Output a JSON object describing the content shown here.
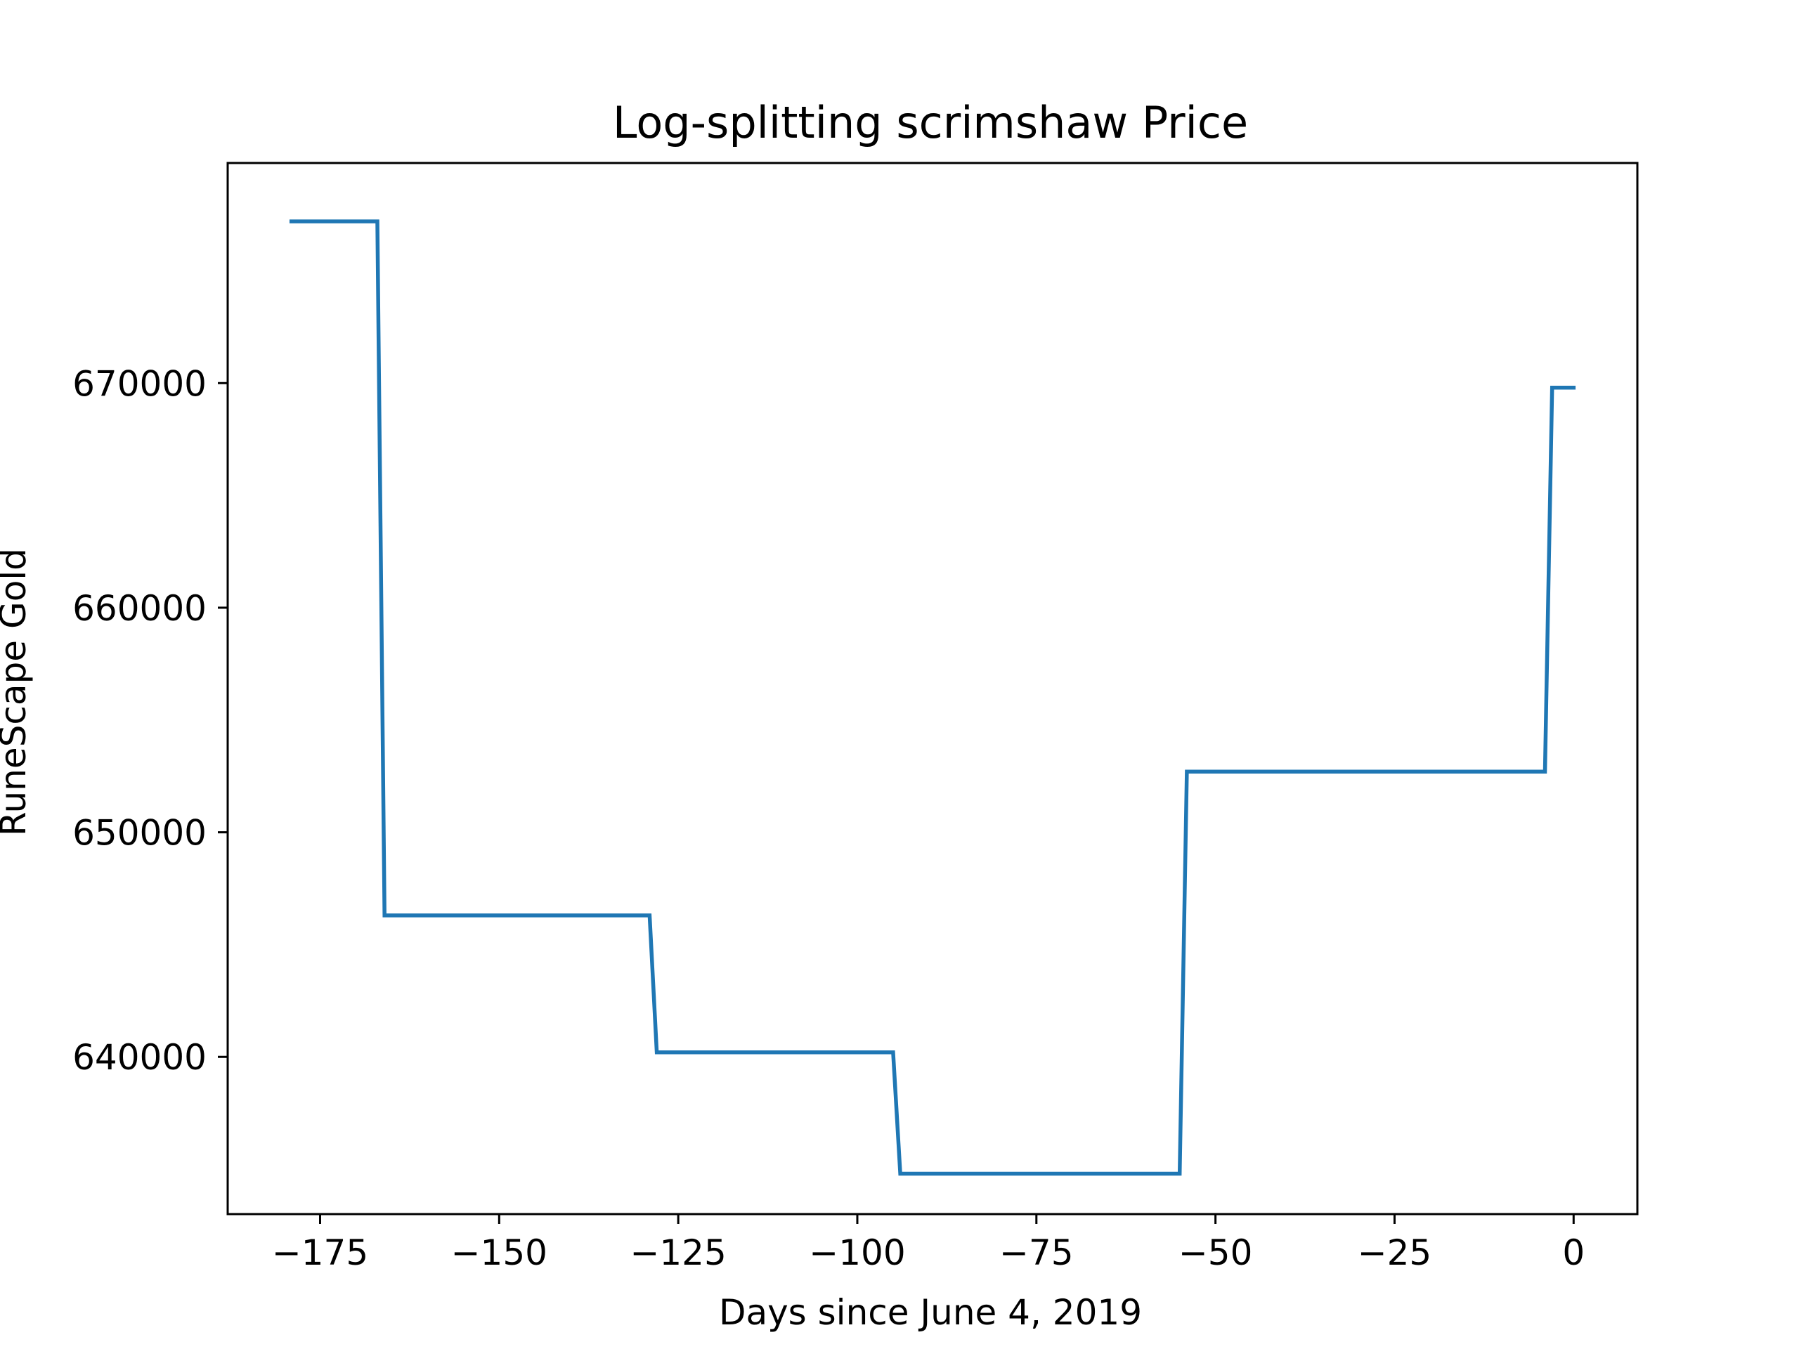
{
  "chart_data": {
    "type": "line",
    "title": "Log-splitting scrimshaw Price",
    "xlabel": "Days since June 4, 2019",
    "ylabel": "RuneScape Gold",
    "xlim": [
      -187.9,
      8.9
    ],
    "ylim": [
      633000,
      679800
    ],
    "x_ticks": [
      -175,
      -150,
      -125,
      -100,
      -75,
      -50,
      -25,
      0
    ],
    "x_tick_labels": [
      "−175",
      "−150",
      "−125",
      "−100",
      "−75",
      "−50",
      "−25",
      "0"
    ],
    "y_ticks": [
      640000,
      650000,
      660000,
      670000
    ],
    "y_tick_labels": [
      "640000",
      "650000",
      "660000",
      "670000"
    ],
    "grid": false,
    "series": [
      {
        "color": "#1f77b4",
        "x": [
          -179,
          -167,
          -166,
          -129,
          -128,
          -95,
          -94,
          -55,
          -54,
          -4,
          -3,
          0
        ],
        "y": [
          677200,
          677200,
          646300,
          646300,
          640200,
          640200,
          634800,
          634800,
          652700,
          652700,
          669800,
          669800
        ]
      }
    ]
  }
}
